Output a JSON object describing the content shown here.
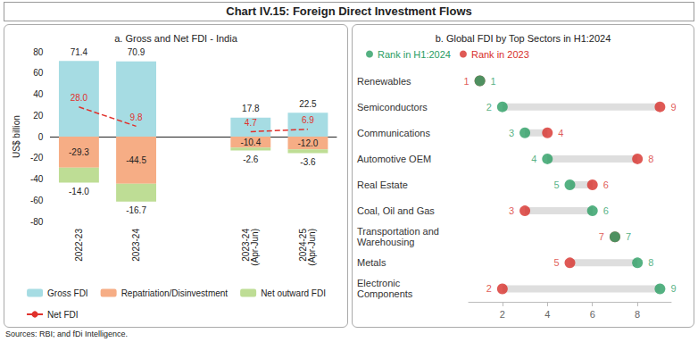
{
  "title": "Chart IV.15: Foreign Direct Investment Flows",
  "source": "Sources: RBI; and fDi Intelligence.",
  "chart_data": [
    {
      "type": "bar",
      "title": "a. Gross and Net FDI - India",
      "y_label": "US$ billion",
      "categories": [
        "2022-23",
        "2023-24",
        null,
        "2023-24 (Apr-Jun)",
        "2024-25 (Apr-Jun)"
      ],
      "ylim": [
        -80,
        80
      ],
      "yticks": [
        -80,
        -60,
        -40,
        -20,
        0,
        20,
        40,
        60,
        80
      ],
      "stacked": true,
      "data_labels": true,
      "legend": "bottom",
      "grid": false,
      "series": [
        {
          "name": "Gross FDI",
          "type": "bar",
          "color": "#a6dce3",
          "values": [
            71.4,
            70.9,
            null,
            17.8,
            22.5
          ],
          "value_labels": [
            "71.4",
            "70.9",
            null,
            "17.8",
            "22.5"
          ]
        },
        {
          "name": "Repatriation/Disinvestment",
          "type": "bar",
          "color": "#f6ad85",
          "values": [
            -29.3,
            -44.5,
            null,
            -10.4,
            -12.0
          ],
          "value_labels": [
            "-29.3",
            "-44.5",
            null,
            "-10.4",
            "-12.0"
          ]
        },
        {
          "name": "Net outward FDI",
          "type": "bar",
          "color": "#bedd95",
          "values": [
            -14.0,
            -16.7,
            null,
            -2.6,
            -3.6
          ],
          "value_labels": [
            "-14.0",
            "-16.7",
            null,
            "-2.6",
            "-3.6"
          ]
        },
        {
          "name": "Net FDI",
          "type": "line",
          "line_style": "dashed",
          "color": "#e0312c",
          "values": [
            28.0,
            9.8,
            null,
            4.7,
            6.9
          ],
          "value_labels": [
            "28.0",
            "9.8",
            null,
            "4.7",
            "6.9"
          ]
        }
      ]
    },
    {
      "type": "dumbbell",
      "title": "b. Global FDI by Top Sectors in H1:2024",
      "orientation": "horizontal",
      "categories": [
        "Renewables",
        "Semiconductors",
        "Communications",
        "Automotive OEM",
        "Real Estate",
        "Coal, Oil and Gas",
        "Transportation and Warehousing",
        "Metals",
        "Electronic Components"
      ],
      "xlim": [
        0.5,
        9.5
      ],
      "xticks": [
        2,
        4,
        6,
        8
      ],
      "data_labels": true,
      "legend": "top",
      "grid": false,
      "series": [
        {
          "name": "Rank in H1:2024",
          "color": "#2a9d63",
          "values": [
            1,
            2,
            3,
            4,
            5,
            6,
            7,
            8,
            9
          ]
        },
        {
          "name": "Rank in 2023",
          "color": "#d7302a",
          "values": [
            1,
            9,
            4,
            8,
            6,
            3,
            7,
            5,
            2
          ]
        }
      ]
    }
  ]
}
